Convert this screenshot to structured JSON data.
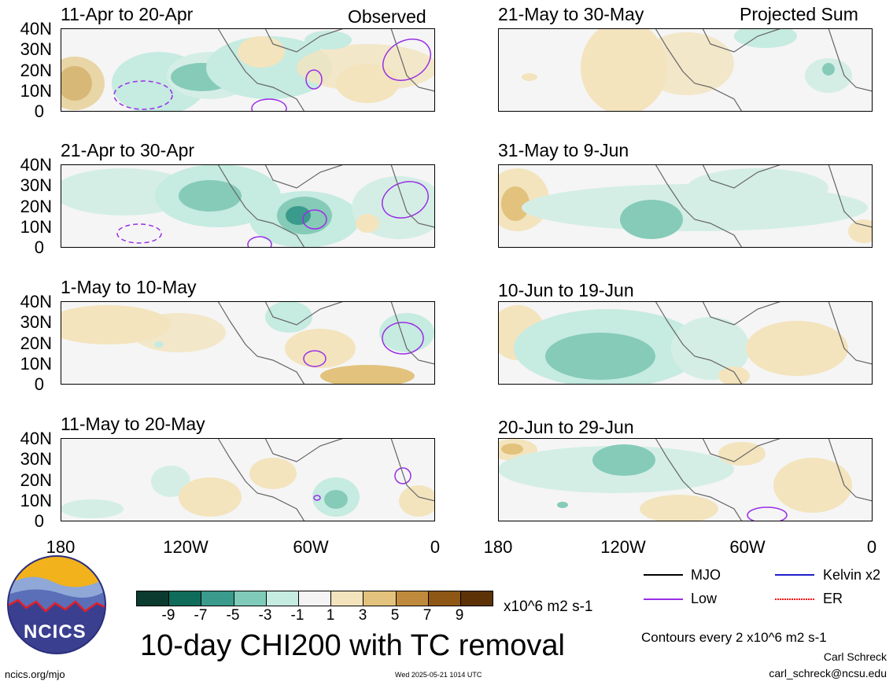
{
  "panels": [
    {
      "title": "11-Apr to 20-Apr",
      "tag": "Observed"
    },
    {
      "title": "21-Apr to 30-Apr",
      "tag": ""
    },
    {
      "title": "1-May to 10-May",
      "tag": ""
    },
    {
      "title": "11-May to 20-May",
      "tag": ""
    },
    {
      "title": "21-May to 30-May",
      "tag": "Projected Sum"
    },
    {
      "title": "31-May to 9-Jun",
      "tag": ""
    },
    {
      "title": "10-Jun to 19-Jun",
      "tag": ""
    },
    {
      "title": "20-Jun to 29-Jun",
      "tag": ""
    }
  ],
  "lat_labels": [
    "40N",
    "30N",
    "20N",
    "10N",
    "0"
  ],
  "lon_labels": [
    "180",
    "120W",
    "60W",
    "0"
  ],
  "colorbar": {
    "ticks": [
      "-9",
      "-7",
      "-5",
      "-3",
      "-1",
      "1",
      "3",
      "5",
      "7",
      "9"
    ],
    "colors": [
      "#0a3b2e",
      "#0f6b5a",
      "#3a9a8b",
      "#7fcab8",
      "#c6ebe1",
      "#f4f4f4",
      "#f3e4be",
      "#e2c27c",
      "#c08a3c",
      "#8f5716",
      "#5c3206"
    ],
    "units": "x10^6 m2 s-1"
  },
  "main_title": "10-day CHI200 with TC removal",
  "legend": [
    {
      "label": "MJO",
      "color": "#000000"
    },
    {
      "label": "Kelvin x2",
      "color": "#1f1fcc"
    },
    {
      "label": "Low",
      "color": "#9a2ee6"
    },
    {
      "label": "ER",
      "color": "#ff0000"
    }
  ],
  "contour_note": "Contours every 2 x10^6 m2 s-1",
  "author": "Carl Schreck",
  "email": "carl_schreck@ncsu.edu",
  "site": "ncics.org/mjo",
  "timestamp": "Wed 2025-05-21 1014 UTC",
  "logo_text": "NCICS"
}
